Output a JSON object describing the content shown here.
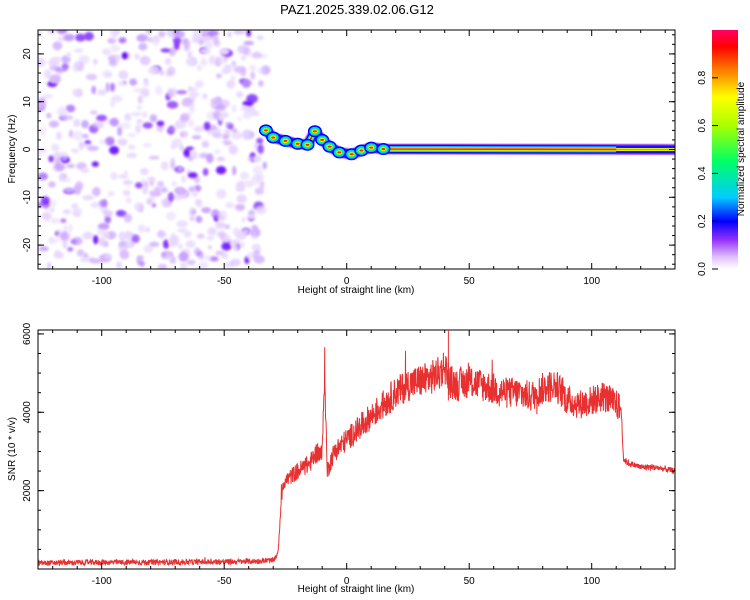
{
  "title": "PAZ1.2025.339.02.06.G12",
  "chart_data": [
    {
      "type": "heatmap",
      "xlabel": "Height of straight line (km)",
      "ylabel": "Frequency (Hz)",
      "xlim": [
        -126,
        134
      ],
      "ylim": [
        -25,
        25
      ],
      "xticks": [
        -100,
        -50,
        0,
        50,
        100
      ],
      "yticks": [
        -20,
        -10,
        0,
        10,
        20
      ],
      "noise_region": [
        -126,
        -33
      ],
      "ridge": {
        "points": [
          {
            "x": -33,
            "y": 4.0
          },
          {
            "x": -30,
            "y": 2.5
          },
          {
            "x": -25,
            "y": 1.8
          },
          {
            "x": -20,
            "y": 1.2
          },
          {
            "x": -16,
            "y": 1.0
          },
          {
            "x": -13,
            "y": 3.8
          },
          {
            "x": -10,
            "y": 2.0
          },
          {
            "x": -7,
            "y": 0.6
          },
          {
            "x": -3,
            "y": -0.6
          },
          {
            "x": 2,
            "y": -1.0
          },
          {
            "x": 6,
            "y": -0.2
          },
          {
            "x": 10,
            "y": 0.4
          },
          {
            "x": 15,
            "y": 0.1
          },
          {
            "x": 134,
            "y": 0.0
          }
        ],
        "peak_amplitude": 0.8
      },
      "colorbar": {
        "label": "Normalized spectral amplitude",
        "range": [
          0,
          1
        ],
        "ticks": [
          "0.0",
          "0.2",
          "0.4",
          "0.6",
          "0.8"
        ]
      }
    },
    {
      "type": "line",
      "xlabel": "Height of straight line (km)",
      "ylabel": "SNR (10 * v/v)",
      "xlim": [
        -126,
        134
      ],
      "ylim": [
        0,
        6100
      ],
      "xticks": [
        -100,
        -50,
        0,
        50,
        100
      ],
      "yticks": [
        2000,
        4000,
        6000
      ],
      "series": [
        {
          "name": "SNR",
          "color": "#e83030",
          "x": [
            -126,
            -100,
            -80,
            -60,
            -40,
            -30,
            -28,
            -27,
            -26,
            -24,
            -20,
            -15,
            -12,
            -10,
            -9,
            -8,
            -5,
            0,
            5,
            10,
            15,
            20,
            25,
            30,
            35,
            38,
            40,
            42,
            45,
            50,
            55,
            60,
            65,
            70,
            75,
            80,
            85,
            88,
            90,
            95,
            100,
            105,
            110,
            112,
            113,
            115,
            120,
            125,
            130,
            134
          ],
          "y": [
            150,
            170,
            170,
            180,
            190,
            220,
            400,
            1500,
            2200,
            2300,
            2500,
            2700,
            3000,
            2900,
            5200,
            2500,
            3000,
            3300,
            3600,
            3900,
            4200,
            4500,
            4700,
            4800,
            4900,
            5000,
            5200,
            4800,
            4700,
            4800,
            4700,
            4600,
            4500,
            4500,
            4400,
            4600,
            4700,
            4500,
            4300,
            4200,
            4300,
            4400,
            4200,
            4100,
            2800,
            2700,
            2600,
            2600,
            2550,
            2500
          ]
        }
      ]
    }
  ]
}
